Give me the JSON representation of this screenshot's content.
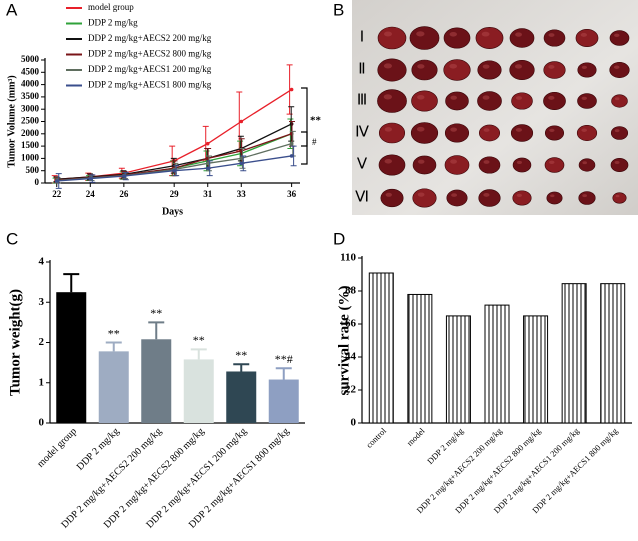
{
  "panels": [
    "A",
    "B",
    "C",
    "D"
  ],
  "photo": {
    "rows": [
      "Ⅰ",
      "Ⅱ",
      "Ⅲ",
      "Ⅳ",
      "Ⅴ",
      "Ⅵ"
    ]
  },
  "chart_data": [
    {
      "type": "line",
      "y_label": "Tumor Volume (mm³)",
      "x_label": "Days",
      "x": [
        22,
        24,
        26,
        29,
        31,
        33,
        36
      ],
      "xlim": [
        21.3,
        36.5
      ],
      "xticks": [
        22,
        24,
        26,
        29,
        31,
        33,
        36
      ],
      "ylim": [
        0,
        5000
      ],
      "yticks": [
        0,
        500,
        1000,
        1500,
        2000,
        2500,
        3000,
        3500,
        4000,
        4500,
        5000
      ],
      "series": [
        {
          "name": "model group",
          "color": "#e8202a",
          "values": [
            150,
            250,
            400,
            900,
            1600,
            2500,
            3800
          ],
          "errors": [
            150,
            150,
            200,
            600,
            700,
            1200,
            1000
          ]
        },
        {
          "name": "DDP 2 mg/kg",
          "color": "#2fa23a",
          "values": [
            100,
            200,
            300,
            600,
            900,
            1200,
            2000
          ],
          "errors": [
            100,
            100,
            150,
            300,
            400,
            500,
            600
          ]
        },
        {
          "name": "DDP 2 mg/kg+AECS2 200 mg/kg",
          "color": "#111111",
          "values": [
            150,
            250,
            350,
            700,
            1000,
            1400,
            2400
          ],
          "errors": [
            100,
            120,
            150,
            300,
            400,
            500,
            700
          ]
        },
        {
          "name": "DDP 2 mg/kg+AECS2 800 mg/kg",
          "color": "#7a1418",
          "values": [
            120,
            220,
            320,
            600,
            1000,
            1300,
            2000
          ],
          "errors": [
            100,
            120,
            150,
            300,
            400,
            500,
            500
          ]
        },
        {
          "name": "DDP 2 mg/kg+AECS1 200 mg/kg",
          "color": "#5f6e5f",
          "values": [
            100,
            200,
            300,
            550,
            800,
            1000,
            1600
          ],
          "errors": [
            100,
            100,
            120,
            250,
            300,
            400,
            500
          ]
        },
        {
          "name": "DDP 2 mg/kg+AECS1 800 mg/kg",
          "color": "#3a4e8c",
          "values": [
            80,
            180,
            280,
            500,
            600,
            800,
            1100
          ],
          "errors": [
            300,
            150,
            150,
            200,
            300,
            300,
            400
          ]
        }
      ],
      "annotations": [
        "**",
        "#"
      ]
    },
    {
      "type": "bar",
      "y_label": "Tumor weight(g)",
      "categories": [
        "model group",
        "DDP 2 mg/kg",
        "DDP 2 mg/kg+AECS2 200 mg/kg",
        "DDP 2 mg/kg+AECS2 800 mg/kg",
        "DDP 2 mg/kg+AECS1 200 mg/kg",
        "DDP 2 mg/kg+AECS1 800 mg/kg"
      ],
      "values": [
        3.25,
        1.78,
        2.08,
        1.58,
        1.28,
        1.08
      ],
      "errors": [
        0.45,
        0.22,
        0.42,
        0.25,
        0.18,
        0.28
      ],
      "colors": [
        "#000000",
        "#9eacc2",
        "#6f7d88",
        "#d9e2de",
        "#2f4753",
        "#8e9fc2"
      ],
      "significance": [
        null,
        "**",
        "**",
        "**",
        "**",
        "**#"
      ],
      "ylim": [
        0,
        4
      ],
      "yticks": [
        0,
        1,
        2,
        3,
        4
      ]
    },
    {
      "type": "hatched-bar",
      "y_label": "survival rate (%)",
      "categories": [
        "control",
        "model",
        "DDP 2 mg/kg",
        "DDP 2 mg/kg+AECS2 200 mg/kg",
        "DDP 2 mg/kg+AECS2 800 mg/kg",
        "DDP 2 mg/kg+AECS1 200 mg/kg",
        "DDP 2 mg/kg+AECS1 800 mg/kg"
      ],
      "values": [
        100,
        85.7,
        71.4,
        78.6,
        71.4,
        92.9,
        92.9
      ],
      "color": "#000000",
      "ylim": [
        0,
        110
      ],
      "yticks": [
        0,
        22,
        44,
        66,
        88,
        110
      ]
    }
  ]
}
